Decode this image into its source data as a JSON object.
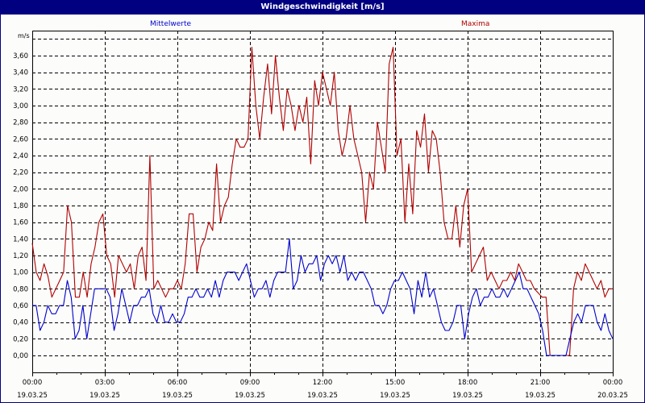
{
  "window": {
    "title": "Windgeschwindigkeit [m/s]"
  },
  "legend": {
    "mean_label": "Mittelwerte",
    "max_label": "Maxima",
    "mean_color": "#0000cc",
    "max_color": "#b00000"
  },
  "axis": {
    "unit": "m/s"
  },
  "chart_data": {
    "type": "line",
    "title": "Windgeschwindigkeit [m/s]",
    "xlabel": "",
    "ylabel": "m/s",
    "ylim": [
      -0.2,
      3.8
    ],
    "grid": true,
    "legend_position": "top",
    "y_ticks": [
      "0,00",
      "0,20",
      "0,40",
      "0,60",
      "0,80",
      "1,00",
      "1,20",
      "1,40",
      "1,60",
      "1,80",
      "2,00",
      "2,20",
      "2,40",
      "2,60",
      "2,80",
      "3,00",
      "3,20",
      "3,40",
      "3,60"
    ],
    "x_ticks": [
      {
        "time": "00:00",
        "date": "19.03.25"
      },
      {
        "time": "03:00",
        "date": "19.03.25"
      },
      {
        "time": "06:00",
        "date": "19.03.25"
      },
      {
        "time": "09:00",
        "date": "19.03.25"
      },
      {
        "time": "12:00",
        "date": "19.03.25"
      },
      {
        "time": "15:00",
        "date": "19.03.25"
      },
      {
        "time": "18:00",
        "date": "19.03.25"
      },
      {
        "time": "21:00",
        "date": "19.03.25"
      },
      {
        "time": "00:00",
        "date": "20.03.25"
      }
    ],
    "x_interval_minutes": 10,
    "series": [
      {
        "name": "Maxima",
        "color": "#b00000",
        "values": [
          1.35,
          1.0,
          0.9,
          1.1,
          0.95,
          0.7,
          0.8,
          0.9,
          1.0,
          1.8,
          1.6,
          0.7,
          0.7,
          1.0,
          0.7,
          1.1,
          1.3,
          1.6,
          1.7,
          1.2,
          1.1,
          0.7,
          1.2,
          1.1,
          1.0,
          1.1,
          0.8,
          1.2,
          1.3,
          0.9,
          2.4,
          0.8,
          0.9,
          0.8,
          0.7,
          0.8,
          0.8,
          0.9,
          0.8,
          1.1,
          1.7,
          1.7,
          1.0,
          1.3,
          1.4,
          1.6,
          1.5,
          2.3,
          1.6,
          1.8,
          1.9,
          2.3,
          2.6,
          2.5,
          2.5,
          2.6,
          3.7,
          3.0,
          2.6,
          3.1,
          3.5,
          2.9,
          3.6,
          3.1,
          2.7,
          3.2,
          3.0,
          2.7,
          3.0,
          2.8,
          3.1,
          2.3,
          3.3,
          3.0,
          3.4,
          3.2,
          3.0,
          3.4,
          2.7,
          2.4,
          2.6,
          3.0,
          2.6,
          2.4,
          2.2,
          1.6,
          2.2,
          2.0,
          2.8,
          2.5,
          2.2,
          3.5,
          3.7,
          2.4,
          2.6,
          1.6,
          2.3,
          1.7,
          2.7,
          2.5,
          2.9,
          2.2,
          2.7,
          2.6,
          2.2,
          1.6,
          1.4,
          1.4,
          1.8,
          1.3,
          1.8,
          2.0,
          1.0,
          1.1,
          1.2,
          1.3,
          0.9,
          1.0,
          0.9,
          0.8,
          0.9,
          0.9,
          1.0,
          0.9,
          1.1,
          1.0,
          0.9,
          0.9,
          0.8,
          0.75,
          0.7,
          0.7,
          0.0,
          0.0,
          0.0,
          0.0,
          0.0,
          0.0,
          0.8,
          1.0,
          0.9,
          1.1,
          1.0,
          0.9,
          0.8,
          0.9,
          0.7,
          0.8,
          0.8
        ]
      },
      {
        "name": "Mittelwerte",
        "color": "#0000cc",
        "values": [
          0.6,
          0.6,
          0.3,
          0.4,
          0.6,
          0.5,
          0.5,
          0.6,
          0.6,
          0.9,
          0.7,
          0.2,
          0.3,
          0.6,
          0.2,
          0.5,
          0.8,
          0.8,
          0.8,
          0.8,
          0.7,
          0.3,
          0.5,
          0.8,
          0.6,
          0.4,
          0.6,
          0.6,
          0.7,
          0.7,
          0.8,
          0.5,
          0.4,
          0.6,
          0.4,
          0.4,
          0.5,
          0.4,
          0.4,
          0.5,
          0.7,
          0.7,
          0.8,
          0.7,
          0.7,
          0.8,
          0.7,
          0.9,
          0.7,
          0.9,
          1.0,
          1.0,
          1.0,
          0.9,
          1.0,
          1.1,
          0.9,
          0.7,
          0.8,
          0.8,
          0.9,
          0.7,
          0.9,
          1.0,
          1.0,
          1.0,
          1.4,
          0.8,
          0.9,
          1.2,
          1.0,
          1.1,
          1.1,
          1.2,
          0.9,
          1.1,
          1.2,
          1.1,
          1.2,
          1.0,
          1.2,
          0.9,
          1.0,
          0.9,
          1.0,
          1.0,
          0.9,
          0.8,
          0.6,
          0.6,
          0.5,
          0.6,
          0.8,
          0.9,
          0.9,
          1.0,
          0.9,
          0.8,
          0.5,
          0.9,
          0.7,
          1.0,
          0.7,
          0.8,
          0.6,
          0.4,
          0.3,
          0.3,
          0.4,
          0.6,
          0.6,
          0.2,
          0.5,
          0.7,
          0.8,
          0.6,
          0.7,
          0.7,
          0.8,
          0.7,
          0.7,
          0.8,
          0.7,
          0.8,
          0.9,
          1.0,
          0.8,
          0.8,
          0.7,
          0.6,
          0.5,
          0.3,
          0.0,
          0.0,
          0.0,
          0.0,
          0.0,
          0.0,
          0.2,
          0.4,
          0.5,
          0.4,
          0.6,
          0.6,
          0.6,
          0.4,
          0.3,
          0.5,
          0.3,
          0.2
        ]
      }
    ]
  }
}
